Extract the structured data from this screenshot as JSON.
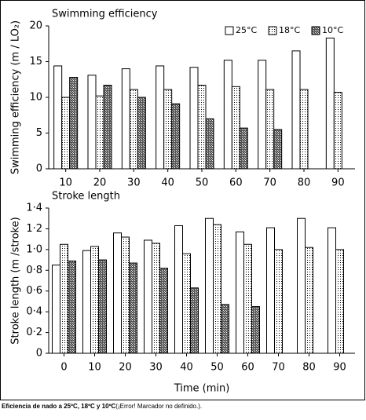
{
  "chart_data": [
    {
      "type": "bar",
      "title": "Swimming efficiency",
      "y_label": "Swimming efficiency (m / LO₂)",
      "categories": [
        "10",
        "20",
        "30",
        "40",
        "50",
        "60",
        "70",
        "80",
        "90"
      ],
      "series": [
        {
          "name": "25°C",
          "color": "#ffffff",
          "pattern": "none",
          "values": [
            14.4,
            13.1,
            14.0,
            14.4,
            14.2,
            15.2,
            15.2,
            16.5,
            18.3
          ]
        },
        {
          "name": "18°C",
          "color": "#ffffff",
          "pattern": "dots",
          "values": [
            10.0,
            10.2,
            11.1,
            11.1,
            11.7,
            11.5,
            11.1,
            11.1,
            10.7
          ]
        },
        {
          "name": "10°C",
          "color": "#ffffff",
          "pattern": "crosshatch",
          "values": [
            12.8,
            11.7,
            10.0,
            9.1,
            7.0,
            5.7,
            5.5,
            null,
            null
          ]
        }
      ],
      "ylim": [
        0,
        20
      ],
      "yticks": [
        0,
        5,
        10,
        15,
        20
      ],
      "legend": "top-right"
    },
    {
      "type": "bar",
      "title": "Stroke length",
      "y_label": "Stroke length (m /stroke)",
      "x_label": "Time (min)",
      "categories": [
        "0",
        "10",
        "20",
        "30",
        "40",
        "50",
        "60",
        "70",
        "80",
        "90"
      ],
      "series": [
        {
          "color": "#ffffff",
          "pattern": "none",
          "values": [
            0.85,
            0.99,
            1.16,
            1.09,
            1.23,
            1.3,
            1.17,
            1.21,
            1.3,
            1.21
          ]
        },
        {
          "color": "#ffffff",
          "pattern": "dots",
          "values": [
            1.05,
            1.03,
            1.12,
            1.06,
            0.96,
            1.24,
            1.05,
            1.0,
            1.02,
            1.0
          ]
        },
        {
          "color": "#ffffff",
          "pattern": "crosshatch",
          "values": [
            0.89,
            0.9,
            0.87,
            0.82,
            0.63,
            0.47,
            0.45,
            null,
            null,
            null
          ]
        }
      ],
      "ylim": [
        0,
        1.4
      ],
      "yticks": [
        0,
        {
          "value": 0.2,
          "label": "0·2"
        },
        {
          "value": 0.4,
          "label": "0·4"
        },
        {
          "value": 0.6,
          "label": "0·6"
        },
        {
          "value": 0.8,
          "label": "0·8"
        },
        {
          "value": 1.0,
          "label": "1·0"
        },
        {
          "value": 1.2,
          "label": "1·2"
        },
        {
          "value": 1.4,
          "label": "1·4"
        }
      ]
    }
  ],
  "caption": {
    "bold": "Eficiencia de nado a 25ºC, 18ºC y 10ºC",
    "rest": "(¡Error! Marcador no definido.)."
  }
}
